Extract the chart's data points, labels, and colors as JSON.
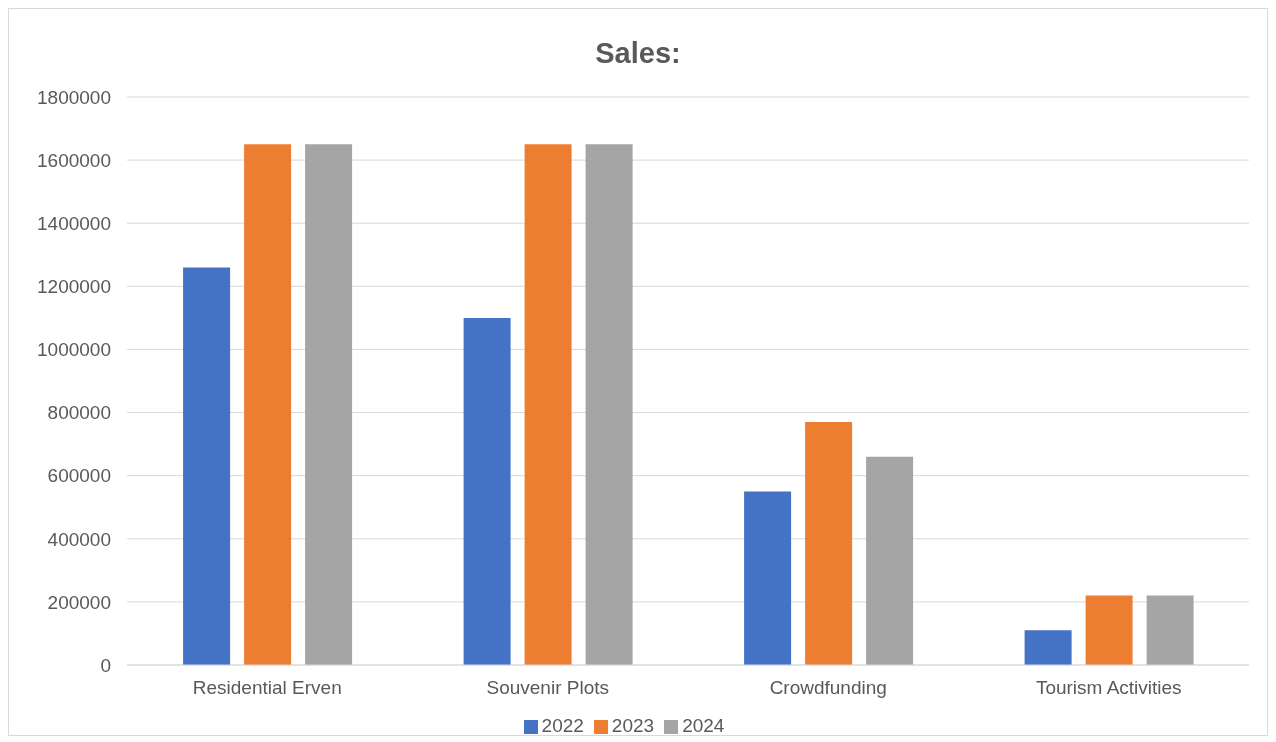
{
  "chart_data": {
    "type": "bar",
    "title": "Sales:",
    "categories": [
      "Residential Erven",
      "Souvenir Plots",
      "Crowdfunding",
      "Tourism Activities"
    ],
    "series": [
      {
        "name": "2022",
        "color": "#4472c4",
        "values": [
          1260000,
          1100000,
          550000,
          110000
        ]
      },
      {
        "name": "2023",
        "color": "#ed7d31",
        "values": [
          1650000,
          1650000,
          770000,
          220000
        ]
      },
      {
        "name": "2024",
        "color": "#a5a5a5",
        "values": [
          1650000,
          1650000,
          660000,
          220000
        ]
      }
    ],
    "ylim": [
      0,
      1800000
    ],
    "yticks": [
      0,
      200000,
      400000,
      600000,
      800000,
      1000000,
      1200000,
      1400000,
      1600000,
      1800000
    ],
    "grid": "y",
    "legend": "bottom"
  }
}
